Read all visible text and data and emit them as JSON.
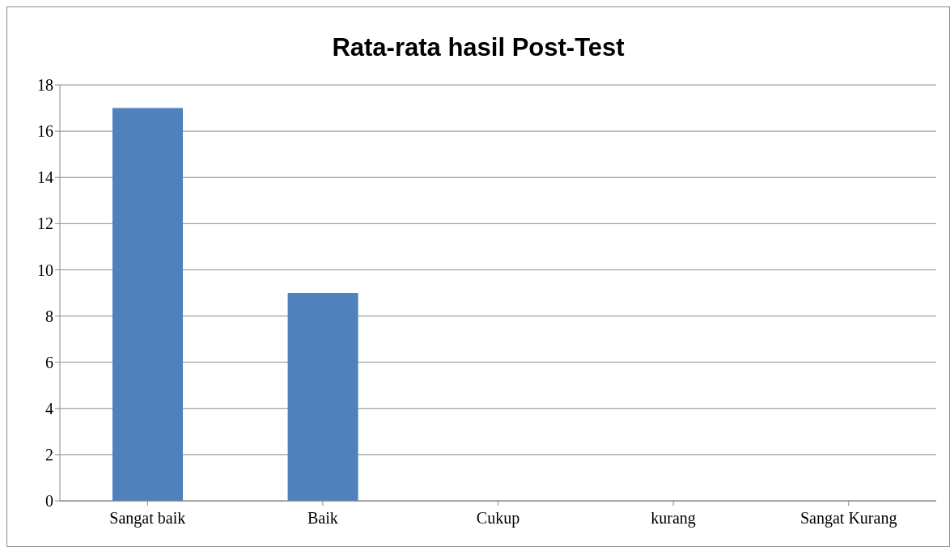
{
  "chart_data": {
    "type": "bar",
    "title": "Rata-rata hasil Post-Test",
    "categories": [
      "Sangat baik",
      "Baik",
      "Cukup",
      "kurang",
      "Sangat Kurang"
    ],
    "values": [
      17,
      9,
      0,
      0,
      0
    ],
    "color": "#4f81bd",
    "ylim": [
      0,
      18
    ],
    "yticks": [
      0,
      2,
      4,
      6,
      8,
      10,
      12,
      14,
      16,
      18
    ],
    "grid": "y"
  }
}
